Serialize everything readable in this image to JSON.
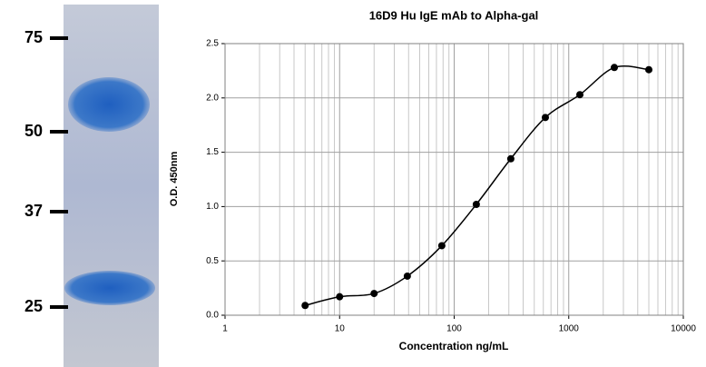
{
  "gel": {
    "markers": [
      75,
      50,
      37,
      25
    ]
  },
  "chart_data": {
    "type": "scatter",
    "title": "16D9 Hu IgE mAb to Alpha-gal",
    "x_label": "Concentration ng/mL",
    "y_label": "O.D. 450nm",
    "x": [
      5,
      10,
      20,
      39,
      78,
      156,
      312,
      625,
      1250,
      2500,
      5000
    ],
    "values": [
      0.09,
      0.17,
      0.2,
      0.36,
      0.64,
      1.02,
      1.44,
      1.82,
      2.03,
      2.28,
      2.26
    ],
    "color": "#000000",
    "line": true,
    "xlim": [
      1,
      10000
    ],
    "xticks": [
      1,
      10,
      100,
      1000,
      10000
    ],
    "xlog": true,
    "ylim": [
      0,
      2.5
    ],
    "yticks": [
      {
        "value": 0,
        "label": "0.0"
      },
      0.5,
      {
        "value": 1,
        "label": "1.0"
      },
      1.5,
      {
        "value": 2,
        "label": "2.0"
      },
      2.5
    ],
    "grid": true
  }
}
